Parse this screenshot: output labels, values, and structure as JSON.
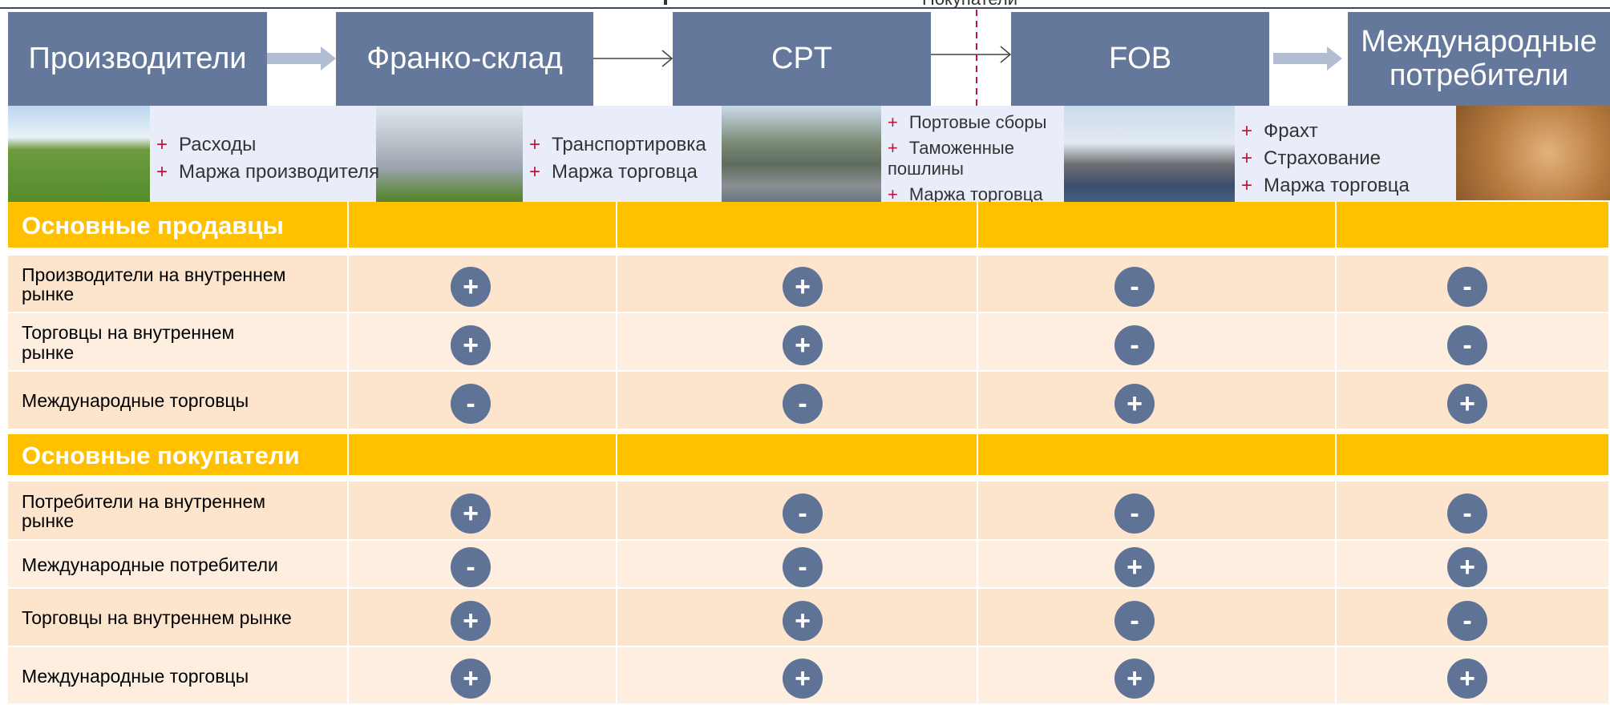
{
  "header": {
    "buyers_label": "Покупатели"
  },
  "flow": {
    "steps": [
      "Производители",
      "Франко-склад",
      "CPT",
      "FOB",
      "Международные потребители"
    ]
  },
  "costs": {
    "bullet": "+",
    "groups": [
      {
        "items": [
          "Расходы",
          "Маржа производителя"
        ]
      },
      {
        "items": [
          "Транспортировка",
          "Маржа торговца"
        ]
      },
      {
        "items": [
          "Портовые сборы",
          "Таможенные пошлины",
          "Маржа торговца"
        ]
      },
      {
        "items": [
          "Фрахт",
          "Страхование",
          "Маржа торговца"
        ]
      }
    ]
  },
  "table": {
    "sections": [
      {
        "title": "Основные продавцы",
        "rows": [
          {
            "label": "Производители на внутреннем\nрынке",
            "marks": [
              "+",
              "+",
              "-",
              "-"
            ]
          },
          {
            "label": "Торговцы на внутреннем\nрынке",
            "marks": [
              "+",
              "+",
              "-",
              "-"
            ]
          },
          {
            "label": "Международные торговцы",
            "marks": [
              "-",
              "-",
              "+",
              "+"
            ]
          }
        ]
      },
      {
        "title": "Основные покупатели",
        "rows": [
          {
            "label": "Потребители на внутреннем\nрынке",
            "marks": [
              "+",
              "-",
              "-",
              "-"
            ]
          },
          {
            "label": "Международные потребители",
            "marks": [
              "-",
              "-",
              "+",
              "+"
            ]
          },
          {
            "label": "Торговцы на внутреннем рынке",
            "marks": [
              "+",
              "+",
              "-",
              "-"
            ]
          },
          {
            "label": "Международные торговцы",
            "marks": [
              "+",
              "+",
              "+",
              "+"
            ]
          }
        ]
      }
    ]
  }
}
